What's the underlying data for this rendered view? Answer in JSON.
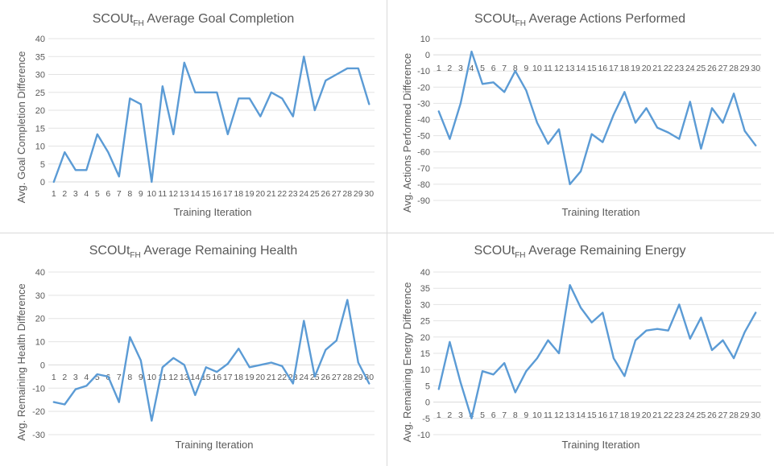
{
  "chart_data": [
    {
      "type": "line",
      "title_main": "SCOUt",
      "title_sub": "FH",
      "title_rest": " Average Goal Completion",
      "xlabel": "Training Iteration",
      "ylabel": "Avg. Goal Completion Difference",
      "ylim": [
        0,
        40
      ],
      "ytick_step": 5,
      "x": [
        1,
        2,
        3,
        4,
        5,
        6,
        7,
        8,
        9,
        10,
        11,
        12,
        13,
        14,
        15,
        16,
        17,
        18,
        19,
        20,
        21,
        22,
        23,
        24,
        25,
        26,
        27,
        28,
        29,
        30
      ],
      "values": [
        0,
        8.3,
        3.3,
        3.3,
        13.3,
        8.3,
        1.5,
        23.3,
        21.7,
        0,
        26.7,
        13.3,
        33.3,
        25,
        25,
        25,
        13.3,
        23.3,
        23.3,
        18.3,
        25,
        23.3,
        18.3,
        35,
        20,
        28.3,
        30,
        31.7,
        31.7,
        21.7
      ],
      "color": "#5b9bd5",
      "grid": true
    },
    {
      "type": "line",
      "title_main": "SCOUt",
      "title_sub": "FH",
      "title_rest": " Average Actions Performed",
      "xlabel": "Training Iteration",
      "ylabel": "Avg. Actions Performed Difference",
      "ylim": [
        -90,
        10
      ],
      "ytick_step": 10,
      "x": [
        1,
        2,
        3,
        4,
        5,
        6,
        7,
        8,
        9,
        10,
        11,
        12,
        13,
        14,
        15,
        16,
        17,
        18,
        19,
        20,
        21,
        22,
        23,
        24,
        25,
        26,
        27,
        28,
        29,
        30
      ],
      "values": [
        -35,
        -52,
        -30,
        2,
        -18,
        -17,
        -23,
        -10,
        -22,
        -42,
        -55,
        -46,
        -80,
        -72,
        -49,
        -54,
        -37,
        -23,
        -42,
        -33,
        -45,
        -48,
        -52,
        -29,
        -58,
        -33,
        -42,
        -24,
        -47,
        -56
      ],
      "color": "#5b9bd5",
      "grid": true
    },
    {
      "type": "line",
      "title_main": "SCOUt",
      "title_sub": "FH",
      "title_rest": " Average Remaining Health",
      "xlabel": "Training Iteration",
      "ylabel": "Avg. Remaining Health Difference",
      "ylim": [
        -30,
        40
      ],
      "ytick_step": 10,
      "x": [
        1,
        2,
        3,
        4,
        5,
        6,
        7,
        8,
        9,
        10,
        11,
        12,
        13,
        14,
        15,
        16,
        17,
        18,
        19,
        20,
        21,
        22,
        23,
        24,
        25,
        26,
        27,
        28,
        29,
        30
      ],
      "values": [
        -16,
        -17,
        -10.5,
        -9,
        -4,
        -5,
        -16,
        12,
        2,
        -24,
        -1,
        3,
        0,
        -13,
        -1,
        -3,
        0.5,
        7,
        -1,
        0,
        1,
        -0.5,
        -8,
        19,
        -5,
        6.5,
        10.5,
        28,
        1,
        -8
      ],
      "color": "#5b9bd5",
      "grid": true
    },
    {
      "type": "line",
      "title_main": "SCOUt",
      "title_sub": "FH",
      "title_rest": " Average Remaining Energy",
      "xlabel": "Training Iteration",
      "ylabel": "Avg. Remaining Energy Difference",
      "ylim": [
        -10,
        40
      ],
      "ytick_step": 5,
      "x": [
        1,
        2,
        3,
        4,
        5,
        6,
        7,
        8,
        9,
        10,
        11,
        12,
        13,
        14,
        15,
        16,
        17,
        18,
        19,
        20,
        21,
        22,
        23,
        24,
        25,
        26,
        27,
        28,
        29,
        30
      ],
      "values": [
        4,
        18.5,
        6,
        -5,
        9.5,
        8.5,
        12,
        3,
        9.5,
        13.5,
        19,
        15,
        36,
        29,
        24.5,
        27.5,
        13.5,
        8,
        19,
        22,
        22.5,
        22,
        30,
        19.5,
        26,
        16,
        19,
        13.5,
        21.5,
        27.5
      ],
      "color": "#5b9bd5",
      "grid": true
    }
  ]
}
